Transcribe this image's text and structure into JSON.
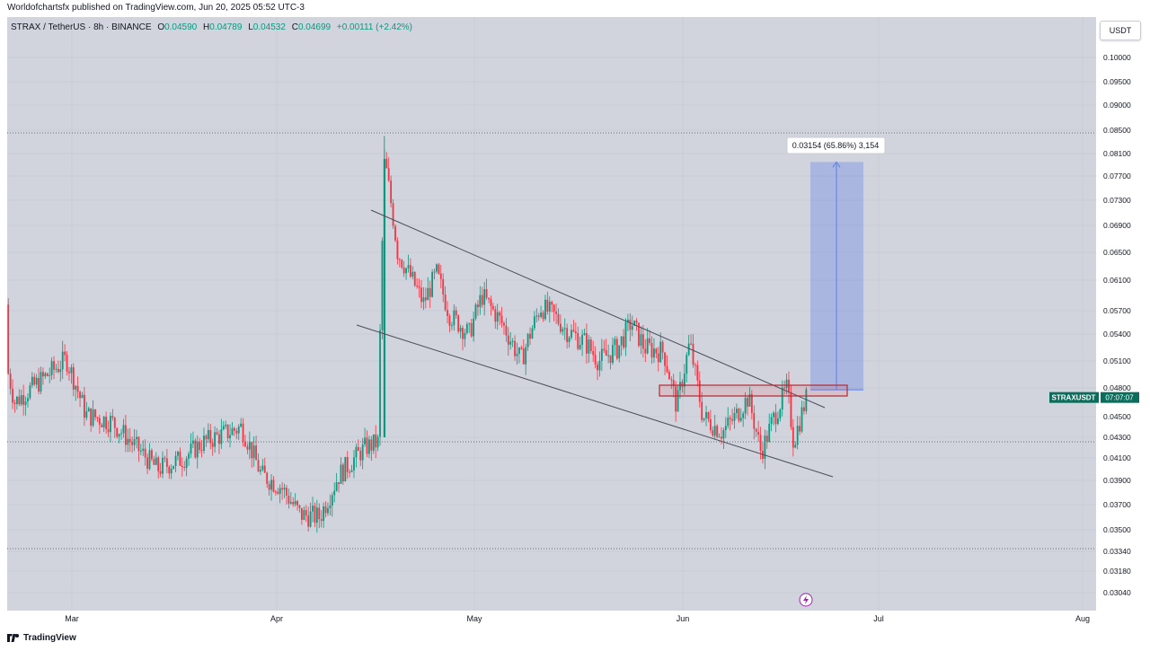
{
  "header": {
    "published": "Worldofchartsfx published on TradingView.com, Jun 20, 2025 05:52 UTC-3"
  },
  "legend": {
    "symbol": "STRAX / TetherUS · 8h · BINANCE",
    "open_label": "O",
    "open": "0.04590",
    "high_label": "H",
    "high": "0.04789",
    "low_label": "L",
    "low": "0.04532",
    "close_label": "C",
    "close": "0.04699",
    "change": "+0.00111 (+2.42%)"
  },
  "currency_button": "USDT",
  "footer": {
    "brand": "TradingView"
  },
  "chart_data": {
    "type": "candlestick",
    "symbol": "STRAXUSDT",
    "price_ticks": [
      "0.10000",
      "0.09500",
      "0.09000",
      "0.08500",
      "0.08100",
      "0.07700",
      "0.07300",
      "0.06900",
      "0.06500",
      "0.06100",
      "0.05700",
      "0.05400",
      "0.05100",
      "0.04800",
      "0.04500",
      "0.04300",
      "0.04100",
      "0.03900",
      "0.03700",
      "0.03500",
      "0.03340",
      "0.03180",
      "0.03040"
    ],
    "time_ticks": [
      "Mar",
      "Apr",
      "May",
      "Jun",
      "Jul",
      "Aug"
    ],
    "last_price_label": "STRAXUSDT",
    "countdown": "07:07:07",
    "measure_label": "0.03154 (65.86%) 3,154",
    "colors": {
      "up": "#089981",
      "down": "#f23645",
      "measure": "#5b7fe8",
      "resistance": "#b22833",
      "background": "#d1d4dc"
    },
    "price_levels": [
      {
        "date": "2025-02-12",
        "price": 0.0578
      },
      {
        "date": "2025-02-17",
        "price": 0.0562
      },
      {
        "date": "2025-02-20",
        "price": 0.0465
      },
      {
        "date": "2025-02-24",
        "price": 0.0488
      },
      {
        "date": "2025-02-28",
        "price": 0.0512
      },
      {
        "date": "2025-03-03",
        "price": 0.0452
      },
      {
        "date": "2025-03-07",
        "price": 0.0445
      },
      {
        "date": "2025-03-10",
        "price": 0.0425
      },
      {
        "date": "2025-03-14",
        "price": 0.04
      },
      {
        "date": "2025-03-18",
        "price": 0.041
      },
      {
        "date": "2025-03-21",
        "price": 0.0425
      },
      {
        "date": "2025-03-25",
        "price": 0.0435
      },
      {
        "date": "2025-03-27",
        "price": 0.044
      },
      {
        "date": "2025-03-30",
        "price": 0.0395
      },
      {
        "date": "2025-04-02",
        "price": 0.0385
      },
      {
        "date": "2025-04-05",
        "price": 0.0362
      },
      {
        "date": "2025-04-08",
        "price": 0.036
      },
      {
        "date": "2025-04-11",
        "price": 0.0395
      },
      {
        "date": "2025-04-15",
        "price": 0.042
      },
      {
        "date": "2025-04-17",
        "price": 0.0425
      },
      {
        "date": "2025-04-18",
        "price": 0.08
      },
      {
        "date": "2025-04-20",
        "price": 0.065
      },
      {
        "date": "2025-04-24",
        "price": 0.058
      },
      {
        "date": "2025-04-26",
        "price": 0.062
      },
      {
        "date": "2025-04-28",
        "price": 0.0565
      },
      {
        "date": "2025-05-01",
        "price": 0.054
      },
      {
        "date": "2025-05-03",
        "price": 0.059
      },
      {
        "date": "2025-05-06",
        "price": 0.0555
      },
      {
        "date": "2025-05-09",
        "price": 0.051
      },
      {
        "date": "2025-05-12",
        "price": 0.0575
      },
      {
        "date": "2025-05-14",
        "price": 0.0565
      },
      {
        "date": "2025-05-16",
        "price": 0.0545
      },
      {
        "date": "2025-05-19",
        "price": 0.053
      },
      {
        "date": "2025-05-21",
        "price": 0.051
      },
      {
        "date": "2025-05-24",
        "price": 0.0525
      },
      {
        "date": "2025-05-26",
        "price": 0.0555
      },
      {
        "date": "2025-05-28",
        "price": 0.0525
      },
      {
        "date": "2025-05-31",
        "price": 0.052
      },
      {
        "date": "2025-06-02",
        "price": 0.046
      },
      {
        "date": "2025-06-04",
        "price": 0.053
      },
      {
        "date": "2025-06-06",
        "price": 0.045
      },
      {
        "date": "2025-06-09",
        "price": 0.0435
      },
      {
        "date": "2025-06-11",
        "price": 0.045
      },
      {
        "date": "2025-06-13",
        "price": 0.047
      },
      {
        "date": "2025-06-15",
        "price": 0.0415
      },
      {
        "date": "2025-06-17",
        "price": 0.045
      },
      {
        "date": "2025-06-19",
        "price": 0.048
      },
      {
        "date": "2025-06-20",
        "price": 0.0425
      },
      {
        "date": "2025-06-22",
        "price": 0.047
      }
    ]
  }
}
